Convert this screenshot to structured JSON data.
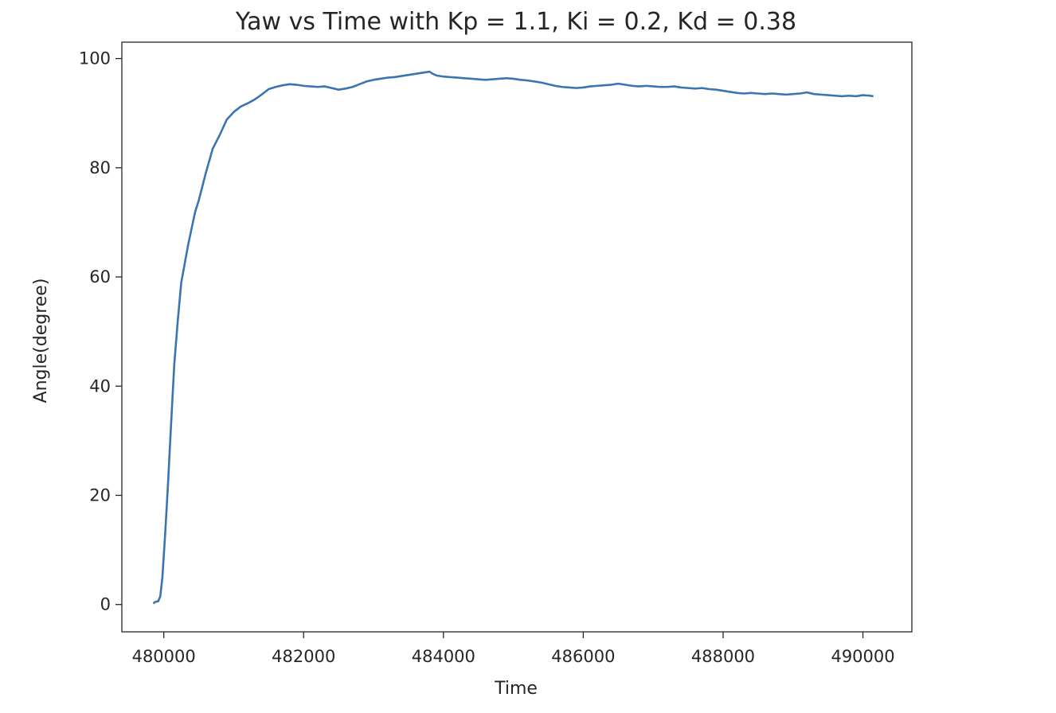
{
  "chart_data": {
    "type": "line",
    "title": "Yaw vs Time with Kp = 1.1, Ki = 0.2, Kd = 0.38",
    "xlabel": "Time",
    "ylabel": "Angle(degree)",
    "xlim": [
      479400,
      490700
    ],
    "ylim": [
      -5,
      103
    ],
    "xticks": [
      480000,
      482000,
      484000,
      486000,
      488000,
      490000
    ],
    "yticks": [
      0,
      20,
      40,
      60,
      80,
      100
    ],
    "xtick_labels": [
      "480000",
      "482000",
      "484000",
      "486000",
      "488000",
      "490000"
    ],
    "ytick_labels": [
      "0",
      "20",
      "40",
      "60",
      "80",
      "100"
    ],
    "grid": false,
    "legend": "none",
    "series": [
      {
        "color": "#3a75b0",
        "x": [
          479850,
          479880,
          479920,
          479950,
          479980,
          480020,
          480060,
          480100,
          480150,
          480200,
          480250,
          480300,
          480350,
          480400,
          480450,
          480500,
          480600,
          480700,
          480800,
          480900,
          481000,
          481100,
          481200,
          481300,
          481400,
          481500,
          481600,
          481700,
          481800,
          481900,
          482000,
          482100,
          482200,
          482300,
          482400,
          482500,
          482600,
          482700,
          482800,
          482900,
          483000,
          483100,
          483200,
          483300,
          483400,
          483500,
          483600,
          483700,
          483800,
          483850,
          483900,
          484000,
          484100,
          484200,
          484300,
          484400,
          484500,
          484600,
          484700,
          484800,
          484900,
          485000,
          485100,
          485200,
          485300,
          485400,
          485500,
          485600,
          485700,
          485800,
          485900,
          486000,
          486100,
          486200,
          486300,
          486400,
          486500,
          486600,
          486700,
          486800,
          486900,
          487000,
          487100,
          487200,
          487300,
          487400,
          487500,
          487600,
          487700,
          487800,
          487900,
          488000,
          488100,
          488200,
          488300,
          488400,
          488500,
          488600,
          488700,
          488800,
          488900,
          489000,
          489100,
          489200,
          489300,
          489400,
          489500,
          489600,
          489700,
          489800,
          489900,
          490000,
          490100,
          490150
        ],
        "y": [
          0.2,
          0.5,
          0.6,
          1.5,
          5,
          13,
          22,
          32,
          44,
          52,
          59,
          62.5,
          66,
          69,
          72,
          74,
          79,
          83.5,
          86,
          88.8,
          90.2,
          91.2,
          91.8,
          92.5,
          93.4,
          94.4,
          94.8,
          95.1,
          95.3,
          95.2,
          95.0,
          94.9,
          94.8,
          94.9,
          94.6,
          94.3,
          94.5,
          94.8,
          95.3,
          95.8,
          96.1,
          96.3,
          96.5,
          96.6,
          96.8,
          97.0,
          97.2,
          97.4,
          97.6,
          97.2,
          96.9,
          96.7,
          96.6,
          96.5,
          96.4,
          96.3,
          96.2,
          96.1,
          96.2,
          96.3,
          96.4,
          96.3,
          96.1,
          96.0,
          95.8,
          95.6,
          95.3,
          95.0,
          94.8,
          94.7,
          94.6,
          94.7,
          94.9,
          95.0,
          95.1,
          95.2,
          95.4,
          95.2,
          95.0,
          94.9,
          95.0,
          94.9,
          94.8,
          94.8,
          94.9,
          94.7,
          94.6,
          94.5,
          94.6,
          94.4,
          94.3,
          94.1,
          93.9,
          93.7,
          93.6,
          93.7,
          93.6,
          93.5,
          93.6,
          93.5,
          93.4,
          93.5,
          93.6,
          93.8,
          93.5,
          93.4,
          93.3,
          93.2,
          93.1,
          93.2,
          93.1,
          93.3,
          93.2,
          93.1
        ]
      }
    ]
  }
}
